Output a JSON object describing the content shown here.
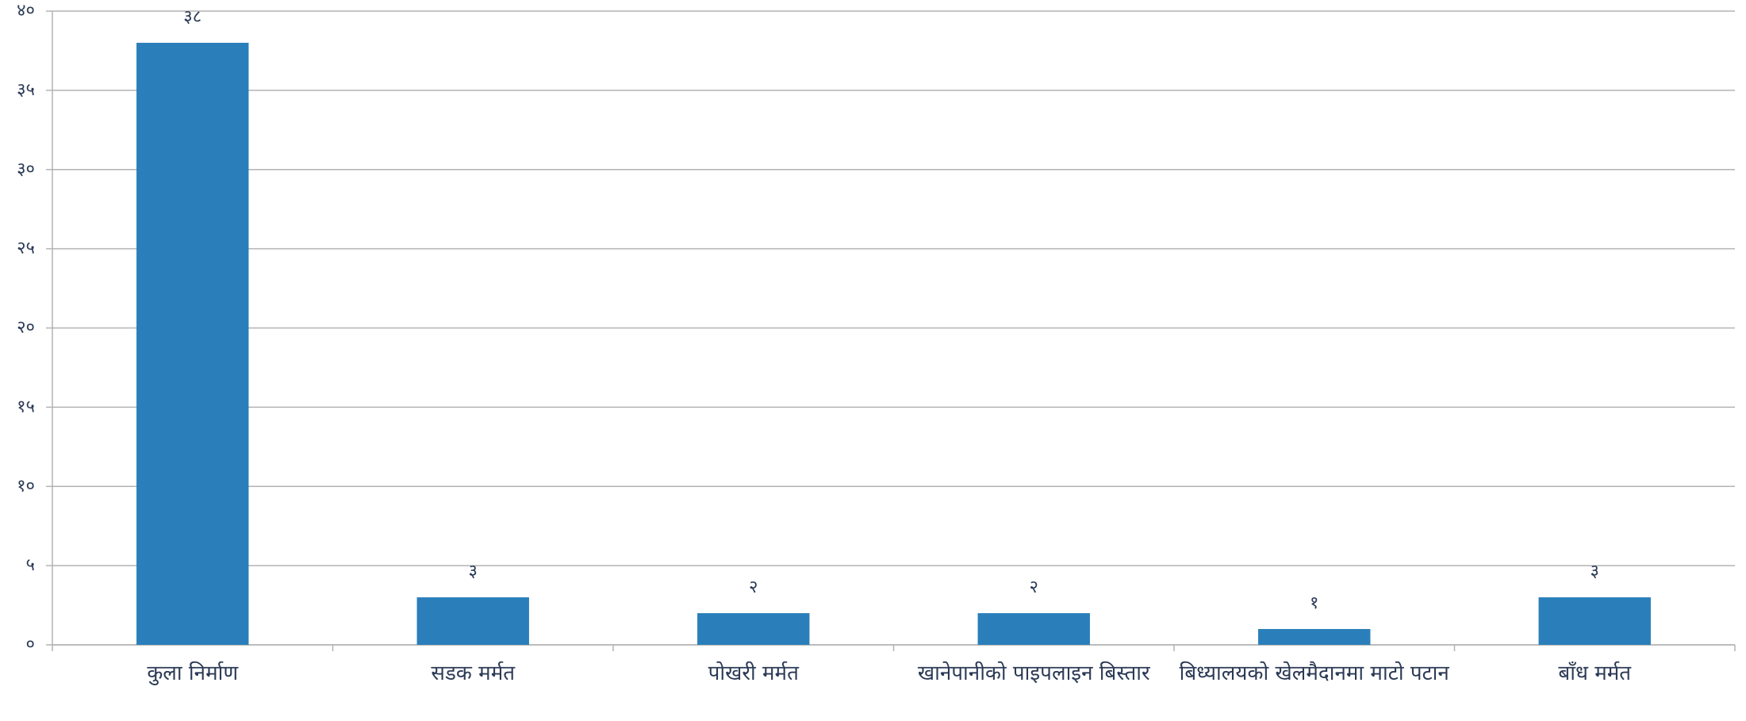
{
  "chart_data": {
    "type": "bar",
    "categories": [
      "कुला निर्माण",
      "सडक मर्मत",
      "पोखरी मर्मत",
      "खानेपानीको पाइपलाइन बिस्तार",
      "बिध्यालयको खेलमैदानमा माटो पटान",
      "बाँध मर्मत"
    ],
    "values": [
      38,
      3,
      2,
      2,
      1,
      3
    ],
    "value_labels": [
      "३८",
      "३",
      "२",
      "२",
      "१",
      "३"
    ],
    "color": "#2a7fba",
    "ylim": [
      0,
      40
    ],
    "yticks": [
      {
        "value": 0,
        "label": "०"
      },
      {
        "value": 5,
        "label": "५"
      },
      {
        "value": 10,
        "label": "१०"
      },
      {
        "value": 15,
        "label": "१५"
      },
      {
        "value": 20,
        "label": "२०"
      },
      {
        "value": 25,
        "label": "२५"
      },
      {
        "value": 30,
        "label": "३०"
      },
      {
        "value": 35,
        "label": "३५"
      },
      {
        "value": 40,
        "label": "४०"
      }
    ],
    "grid": true
  }
}
